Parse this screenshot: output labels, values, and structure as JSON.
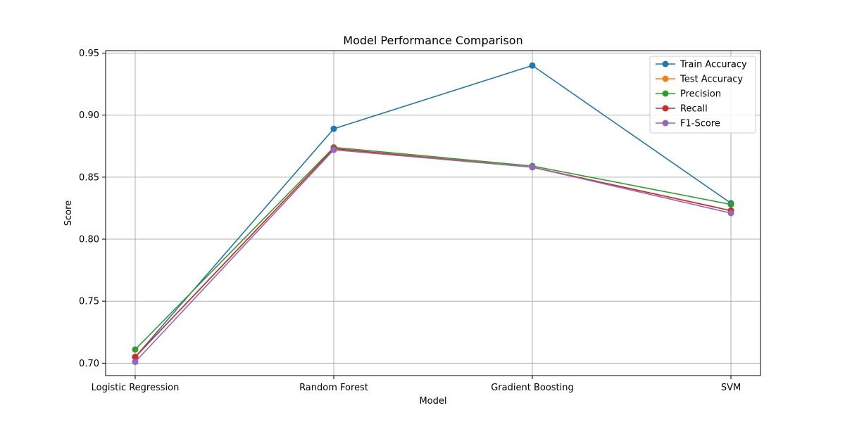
{
  "chart_data": {
    "type": "line",
    "title": "Model Performance Comparison",
    "xlabel": "Model",
    "ylabel": "Score",
    "categories": [
      "Logistic Regression",
      "Random Forest",
      "Gradient Boosting",
      "SVM"
    ],
    "ylim": [
      0.69,
      0.952
    ],
    "yticks": [
      0.7,
      0.75,
      0.8,
      0.85,
      0.9,
      0.95
    ],
    "ytick_labels": [
      "0.70",
      "0.75",
      "0.80",
      "0.85",
      "0.90",
      "0.95"
    ],
    "grid": true,
    "legend_position": "top-right",
    "marker": "circle",
    "series": [
      {
        "name": "Train Accuracy",
        "color": "#1f77b4",
        "values": [
          0.705,
          0.889,
          0.94,
          0.829
        ]
      },
      {
        "name": "Test Accuracy",
        "color": "#ff7f0e",
        "values": [
          0.705,
          0.873,
          0.858,
          0.823
        ]
      },
      {
        "name": "Precision",
        "color": "#2ca02c",
        "values": [
          0.711,
          0.874,
          0.859,
          0.828
        ]
      },
      {
        "name": "Recall",
        "color": "#d62728",
        "values": [
          0.705,
          0.873,
          0.858,
          0.823
        ]
      },
      {
        "name": "F1-Score",
        "color": "#9467bd",
        "values": [
          0.701,
          0.872,
          0.858,
          0.821
        ]
      }
    ]
  }
}
